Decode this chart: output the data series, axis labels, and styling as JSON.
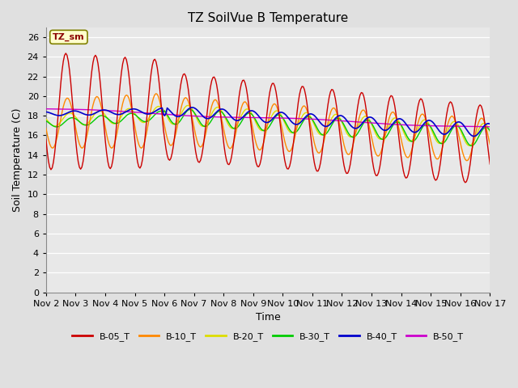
{
  "title": "TZ SoilVue B Temperature",
  "ylabel": "Soil Temperature (C)",
  "xlabel": "Time",
  "annotation_label": "TZ_sm",
  "ylim": [
    0,
    27
  ],
  "yticks": [
    0,
    2,
    4,
    6,
    8,
    10,
    12,
    14,
    16,
    18,
    20,
    22,
    24,
    26
  ],
  "x_tick_labels": [
    "Nov 2",
    "Nov 3",
    "Nov 4",
    "Nov 5",
    "Nov 6",
    "Nov 7",
    "Nov 8",
    "Nov 9",
    "Nov 10",
    "Nov 11",
    "Nov 12",
    "Nov 13",
    "Nov 14",
    "Nov 15",
    "Nov 16",
    "Nov 17"
  ],
  "colors": {
    "B-05_T": "#cc0000",
    "B-10_T": "#ff8800",
    "B-20_T": "#dddd00",
    "B-30_T": "#00cc00",
    "B-40_T": "#0000cc",
    "B-50_T": "#cc00cc"
  },
  "legend_labels": [
    "B-05_T",
    "B-10_T",
    "B-20_T",
    "B-30_T",
    "B-40_T",
    "B-50_T"
  ],
  "background_color": "#e0e0e0",
  "title_fontsize": 11,
  "axis_label_fontsize": 9,
  "tick_fontsize": 8,
  "figwidth": 6.4,
  "figheight": 4.8,
  "dpi": 100
}
